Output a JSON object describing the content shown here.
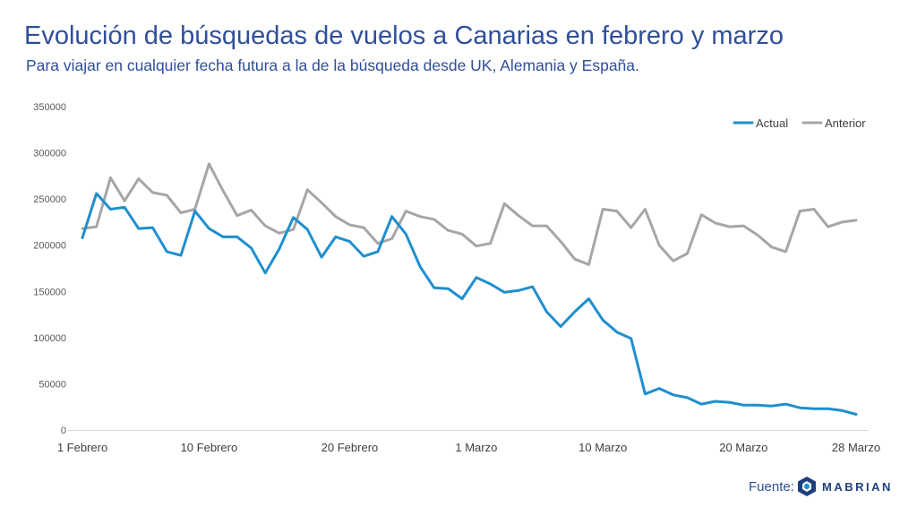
{
  "header": {
    "title": "Evolución de búsquedas de vuelos a Canarias en febrero y marzo",
    "subtitle": "Para viajar en cualquier fecha futura a la de la búsqueda desde UK, Alemania y España."
  },
  "footer": {
    "source_label": "Fuente:",
    "brand": "MABRIAN",
    "brand_icon": "mabrian-hexagon-logo-icon"
  },
  "colors": {
    "title": "#2f4f9a",
    "actual": "#1f8fce",
    "anterior": "#a6a6a6",
    "gridline": "#d9d9d9"
  },
  "chart_data": {
    "type": "line",
    "title": "",
    "xlabel": "",
    "ylabel": "",
    "ylim": [
      0,
      350000
    ],
    "yticks": [
      "0",
      "50000",
      "100000",
      "150000",
      "200000",
      "250000",
      "300000",
      "350000"
    ],
    "xtick_labels": [
      {
        "index": 0,
        "label": "1 Febrero"
      },
      {
        "index": 9,
        "label": "10 Febrero"
      },
      {
        "index": 19,
        "label": "20 Febrero"
      },
      {
        "index": 28,
        "label": "1 Marzo"
      },
      {
        "index": 37,
        "label": "10 Marzo"
      },
      {
        "index": 47,
        "label": "20 Marzo"
      },
      {
        "index": 55,
        "label": "28 Marzo"
      }
    ],
    "grid": false,
    "legend_position": "top-right",
    "series": [
      {
        "name": "Actual",
        "color": "#1f8fce",
        "values": [
          208000,
          256000,
          239000,
          241000,
          218000,
          219000,
          193000,
          189000,
          237000,
          218000,
          209000,
          209000,
          197000,
          170000,
          196000,
          230000,
          217000,
          187000,
          209000,
          204000,
          188000,
          193000,
          231000,
          212000,
          177000,
          154000,
          153000,
          142000,
          165000,
          158000,
          149000,
          151000,
          155000,
          128000,
          112000,
          128000,
          142000,
          119000,
          106000,
          99000,
          39000,
          45000,
          38000,
          35000,
          28000,
          31000,
          30000,
          27000,
          27000,
          26000,
          28000,
          24000,
          23000,
          23000,
          21000,
          17000
        ]
      },
      {
        "name": "Anterior",
        "color": "#a6a6a6",
        "values": [
          218000,
          220000,
          273000,
          248000,
          272000,
          257000,
          254000,
          235000,
          239000,
          288000,
          259000,
          232000,
          238000,
          221000,
          213000,
          217000,
          260000,
          246000,
          231000,
          222000,
          219000,
          202000,
          207000,
          237000,
          231000,
          228000,
          216000,
          212000,
          199000,
          202000,
          245000,
          232000,
          221000,
          221000,
          204000,
          185000,
          179000,
          239000,
          237000,
          219000,
          239000,
          200000,
          183000,
          191000,
          233000,
          224000,
          220000,
          221000,
          211000,
          198000,
          193000,
          237000,
          239000,
          220000,
          225000,
          227000
        ]
      }
    ]
  }
}
